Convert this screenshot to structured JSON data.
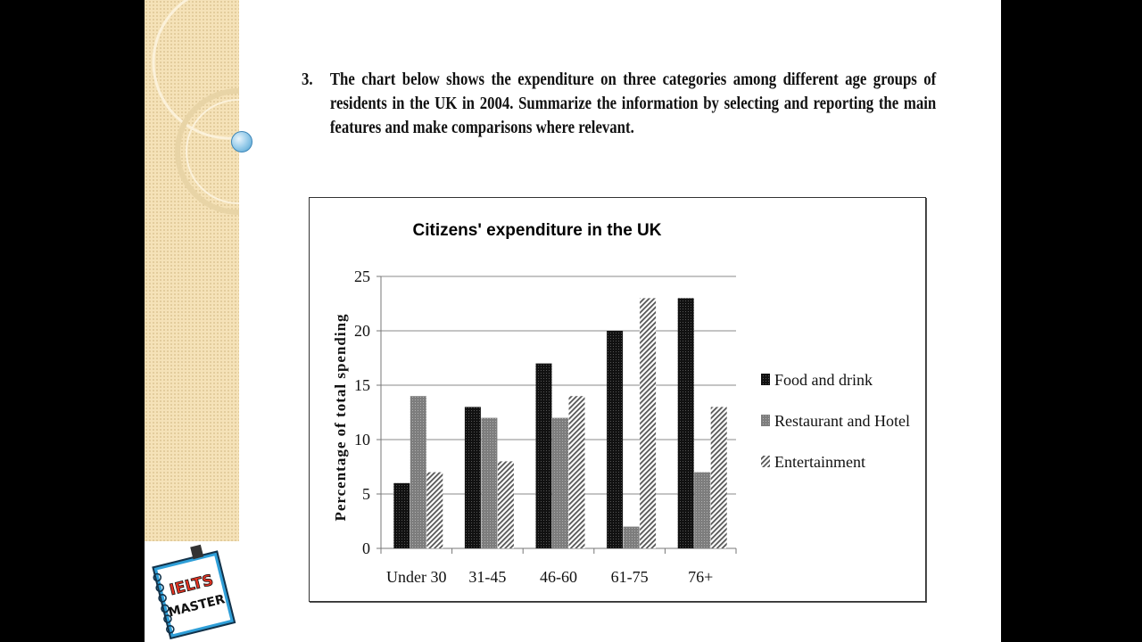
{
  "question": {
    "number": "3.",
    "text": "The chart below shows the expenditure on three categories among different age groups of residents in the UK in 2004. Summarize the information by selecting and reporting the main features and make comparisons where relevant."
  },
  "logo": {
    "line1": "IELTS",
    "line2": "MASTER"
  },
  "colors": {
    "food": "#111111",
    "restaurant": "#8c8c8c",
    "entertainment": "#a0a0a0",
    "sidebar": "#f5e2b8",
    "ball": "#4a9fcf"
  },
  "chart_data": {
    "type": "bar",
    "title": "Citizens' expenditure in the UK",
    "xlabel": "",
    "ylabel": "Percentage of total spending",
    "categories": [
      "Under 30",
      "31-45",
      "46-60",
      "61-75",
      "76+"
    ],
    "series": [
      {
        "name": "Food and drink",
        "values": [
          6,
          13,
          17,
          20,
          23
        ],
        "color": "#111111",
        "pattern": "dense-dots"
      },
      {
        "name": "Restaurant and Hotel",
        "values": [
          14,
          12,
          12,
          2,
          7
        ],
        "color": "#8c8c8c",
        "pattern": "grey-dots"
      },
      {
        "name": "Entertainment",
        "values": [
          7,
          8,
          14,
          23,
          13
        ],
        "color": "#a0a0a0",
        "pattern": "diagonal-stripes"
      }
    ],
    "ylim": [
      0,
      25
    ],
    "yticks": [
      0,
      5,
      10,
      15,
      20,
      25
    ],
    "grid": true,
    "legend_position": "right"
  }
}
